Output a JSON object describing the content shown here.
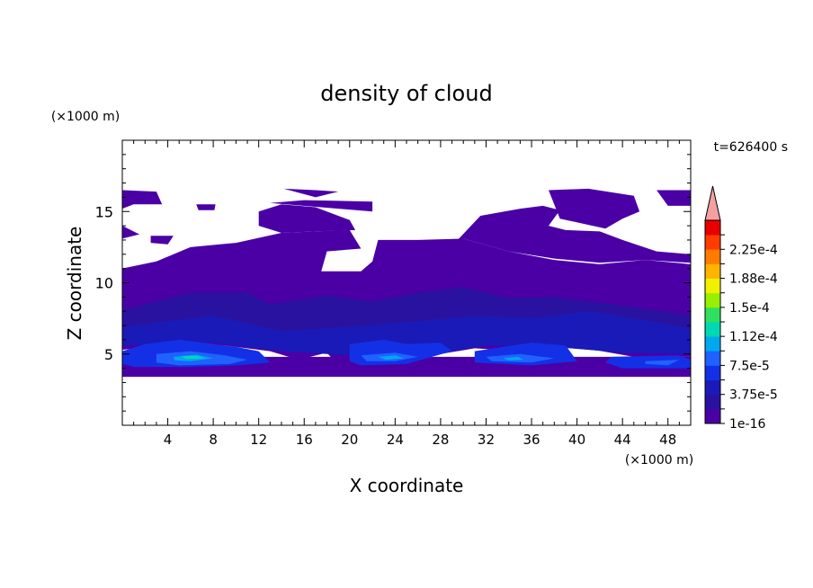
{
  "chart_data": {
    "type": "heatmap",
    "title": "density of cloud",
    "time_label": "t=626400 s",
    "xlabel": "X coordinate",
    "ylabel": "Z coordinate",
    "x_unit": "(×1000 m)",
    "y_unit": "(×1000 m)",
    "xlim": [
      0,
      50
    ],
    "ylim": [
      0,
      20
    ],
    "x_ticks": [
      4,
      8,
      12,
      16,
      20,
      24,
      28,
      32,
      36,
      40,
      44,
      48
    ],
    "y_ticks": [
      5,
      10,
      15
    ],
    "grid": false,
    "colorbar": {
      "placement": "right",
      "levels": [
        {
          "value": "1e-16",
          "color": "#4b00a6"
        },
        {
          "value": "",
          "color": "#2a12a0"
        },
        {
          "value": "3.75e-5",
          "color": "#1a1ab8"
        },
        {
          "value": "",
          "color": "#1430e6"
        },
        {
          "value": "7.5e-5",
          "color": "#1f62ff"
        },
        {
          "value": "",
          "color": "#00a8f0"
        },
        {
          "value": "1.12e-4",
          "color": "#00d8b4"
        },
        {
          "value": "",
          "color": "#2fe060"
        },
        {
          "value": "1.5e-4",
          "color": "#98f000"
        },
        {
          "value": "",
          "color": "#f0f000"
        },
        {
          "value": "1.88e-4",
          "color": "#ffb400"
        },
        {
          "value": "",
          "color": "#ff7c00"
        },
        {
          "value": "2.25e-4",
          "color": "#ff3c00"
        },
        {
          "value": "",
          "color": "#e80000"
        }
      ],
      "extend_color": "#f4a0a0"
    },
    "regions": [
      {
        "level": 0,
        "pts": [
          [
            0,
            4.8
          ],
          [
            50,
            4.8
          ],
          [
            50,
            3.4
          ],
          [
            0,
            3.4
          ]
        ]
      },
      {
        "level": 0,
        "pts": [
          [
            0,
            11
          ],
          [
            3,
            11.5
          ],
          [
            6,
            12.5
          ],
          [
            10,
            12.8
          ],
          [
            14,
            13.5
          ],
          [
            17,
            13.6
          ],
          [
            20,
            13.7
          ],
          [
            21,
            12.4
          ],
          [
            18,
            12.2
          ],
          [
            17.5,
            10.8
          ],
          [
            21,
            10.8
          ],
          [
            22,
            11.5
          ],
          [
            22.5,
            13
          ],
          [
            26,
            13
          ],
          [
            30,
            13.1
          ],
          [
            34,
            12.2
          ],
          [
            38,
            11.6
          ],
          [
            42,
            11.3
          ],
          [
            46,
            11.6
          ],
          [
            50,
            11.3
          ],
          [
            50,
            4.8
          ],
          [
            45,
            4.8
          ],
          [
            40,
            5.5
          ],
          [
            35,
            5.2
          ],
          [
            31,
            5.4
          ],
          [
            25,
            4.6
          ],
          [
            24,
            5
          ],
          [
            22,
            4.7
          ],
          [
            19,
            4.2
          ],
          [
            18,
            5.1
          ],
          [
            15.5,
            4.6
          ],
          [
            13,
            5.2
          ],
          [
            9,
            5.6
          ],
          [
            4,
            5.6
          ],
          [
            0,
            5.3
          ]
        ]
      },
      {
        "level": 0,
        "pts": [
          [
            13,
            15.6
          ],
          [
            16,
            15.8
          ],
          [
            22,
            15.7
          ],
          [
            22,
            15
          ]
        ]
      },
      {
        "level": 0,
        "pts": [
          [
            12,
            15
          ],
          [
            14,
            15.5
          ],
          [
            17,
            15.3
          ],
          [
            20,
            14.4
          ],
          [
            20.5,
            13.7
          ],
          [
            17,
            13.6
          ],
          [
            14,
            13.5
          ],
          [
            12,
            14
          ]
        ]
      },
      {
        "level": 0,
        "pts": [
          [
            29.5,
            13
          ],
          [
            31.5,
            14.7
          ],
          [
            35,
            15.2
          ],
          [
            37,
            15.4
          ],
          [
            38.5,
            15.1
          ],
          [
            37.5,
            14
          ],
          [
            39,
            13.7
          ],
          [
            42,
            13.6
          ],
          [
            44,
            13
          ],
          [
            47,
            12.2
          ],
          [
            50,
            12
          ],
          [
            50,
            11.4
          ],
          [
            46,
            11.6
          ],
          [
            42,
            11.4
          ],
          [
            38,
            11.7
          ],
          [
            34,
            12.2
          ],
          [
            30,
            13.1
          ]
        ]
      },
      {
        "level": 0,
        "pts": [
          [
            37.5,
            16.5
          ],
          [
            41,
            16.6
          ],
          [
            45,
            16.1
          ],
          [
            45.5,
            15
          ],
          [
            44,
            14.5
          ],
          [
            42.5,
            13.8
          ],
          [
            38.5,
            14.5
          ]
        ]
      },
      {
        "level": 0,
        "pts": [
          [
            47,
            16.5
          ],
          [
            50,
            16.5
          ],
          [
            50,
            15.4
          ],
          [
            48,
            15.4
          ]
        ]
      },
      {
        "level": 0,
        "pts": [
          [
            0,
            16.5
          ],
          [
            3,
            16.4
          ],
          [
            3.5,
            15.5
          ],
          [
            1,
            15.5
          ],
          [
            0,
            15.2
          ]
        ]
      },
      {
        "level": 0,
        "pts": [
          [
            0,
            14
          ],
          [
            1.5,
            13.4
          ],
          [
            0,
            13.1
          ]
        ]
      },
      {
        "level": 0,
        "pts": [
          [
            2.5,
            13.3
          ],
          [
            4.5,
            13.3
          ],
          [
            4,
            12.7
          ],
          [
            2.5,
            12.8
          ]
        ]
      },
      {
        "level": 0,
        "pts": [
          [
            6.5,
            15.5
          ],
          [
            8.2,
            15.5
          ],
          [
            8.1,
            15.1
          ],
          [
            6.7,
            15.1
          ]
        ]
      },
      {
        "level": 0,
        "pts": [
          [
            14.2,
            16.6
          ],
          [
            17,
            16.5
          ],
          [
            19,
            16.4
          ],
          [
            17,
            16
          ]
        ]
      },
      {
        "level": 1,
        "pts": [
          [
            0,
            8.1
          ],
          [
            6,
            9.3
          ],
          [
            11,
            9.3
          ],
          [
            13,
            8.5
          ],
          [
            18,
            9.1
          ],
          [
            22,
            8.7
          ],
          [
            26,
            9.3
          ],
          [
            30,
            9.7
          ],
          [
            34,
            8.9
          ],
          [
            38,
            9
          ],
          [
            44,
            8.4
          ],
          [
            50,
            7.7
          ],
          [
            50,
            5
          ],
          [
            44,
            5.1
          ],
          [
            38,
            5.5
          ],
          [
            32,
            5.6
          ],
          [
            26,
            4.9
          ],
          [
            22,
            5
          ],
          [
            18,
            5.2
          ],
          [
            12,
            5.6
          ],
          [
            6,
            6.2
          ],
          [
            0,
            5.9
          ]
        ]
      },
      {
        "level": 2,
        "pts": [
          [
            0,
            6.9
          ],
          [
            8,
            7.7
          ],
          [
            14,
            6.6
          ],
          [
            20,
            6.9
          ],
          [
            26,
            7.3
          ],
          [
            31,
            7.7
          ],
          [
            36,
            7.5
          ],
          [
            41,
            8
          ],
          [
            45,
            7.5
          ],
          [
            50,
            6.8
          ],
          [
            50,
            5
          ],
          [
            44,
            5.1
          ],
          [
            38,
            5.5
          ],
          [
            32,
            5.6
          ],
          [
            26,
            4.8
          ],
          [
            20,
            4.9
          ],
          [
            14,
            5.2
          ],
          [
            8,
            5.8
          ],
          [
            0,
            5.6
          ]
        ]
      },
      {
        "level": 3,
        "pts": [
          [
            0,
            5.2
          ],
          [
            2,
            5.7
          ],
          [
            5,
            6
          ],
          [
            10,
            5.5
          ],
          [
            12,
            5.2
          ],
          [
            13,
            4.4
          ],
          [
            10,
            4.2
          ],
          [
            6,
            4.1
          ],
          [
            1,
            4.1
          ],
          [
            0,
            4.3
          ]
        ]
      },
      {
        "level": 3,
        "pts": [
          [
            20,
            5.7
          ],
          [
            23,
            6
          ],
          [
            25,
            5.7
          ],
          [
            28,
            5.8
          ],
          [
            29,
            5.2
          ],
          [
            25,
            4.3
          ],
          [
            21,
            4.2
          ],
          [
            20,
            4.5
          ]
        ]
      },
      {
        "level": 3,
        "pts": [
          [
            31,
            5.2
          ],
          [
            36,
            5.8
          ],
          [
            39,
            5.6
          ],
          [
            40,
            4.5
          ],
          [
            36,
            4.2
          ],
          [
            31,
            4.4
          ]
        ]
      },
      {
        "level": 3,
        "pts": [
          [
            43,
            4.8
          ],
          [
            49,
            4.9
          ],
          [
            50,
            4.6
          ],
          [
            50,
            4
          ],
          [
            44,
            4
          ],
          [
            42.5,
            4.4
          ]
        ]
      },
      {
        "level": 4,
        "pts": [
          [
            3,
            5
          ],
          [
            6,
            5.2
          ],
          [
            9,
            4.9
          ],
          [
            11,
            4.6
          ],
          [
            9.5,
            4.3
          ],
          [
            5,
            4.2
          ],
          [
            3,
            4.4
          ]
        ]
      },
      {
        "level": 4,
        "pts": [
          [
            21,
            4.9
          ],
          [
            24,
            5.1
          ],
          [
            26,
            4.8
          ],
          [
            24,
            4.5
          ],
          [
            21.5,
            4.5
          ]
        ]
      },
      {
        "level": 4,
        "pts": [
          [
            32,
            4.8
          ],
          [
            35,
            5
          ],
          [
            38,
            4.7
          ],
          [
            36,
            4.4
          ],
          [
            32.5,
            4.5
          ]
        ]
      },
      {
        "level": 4,
        "pts": [
          [
            46,
            4.5
          ],
          [
            49,
            4.6
          ],
          [
            48,
            4.2
          ],
          [
            46,
            4.3
          ]
        ]
      },
      {
        "level": 5,
        "pts": [
          [
            4.5,
            4.8
          ],
          [
            6.5,
            4.95
          ],
          [
            8,
            4.7
          ],
          [
            6,
            4.5
          ],
          [
            4.6,
            4.55
          ]
        ]
      },
      {
        "level": 5,
        "pts": [
          [
            22.5,
            4.8
          ],
          [
            24,
            4.9
          ],
          [
            24.8,
            4.7
          ],
          [
            23.2,
            4.6
          ]
        ]
      },
      {
        "level": 5,
        "pts": [
          [
            33.5,
            4.7
          ],
          [
            34.8,
            4.8
          ],
          [
            35.3,
            4.6
          ],
          [
            34,
            4.55
          ]
        ]
      },
      {
        "level": 6,
        "pts": [
          [
            5.2,
            4.85
          ],
          [
            6.6,
            4.88
          ],
          [
            7.2,
            4.7
          ],
          [
            5.6,
            4.65
          ]
        ]
      }
    ]
  }
}
